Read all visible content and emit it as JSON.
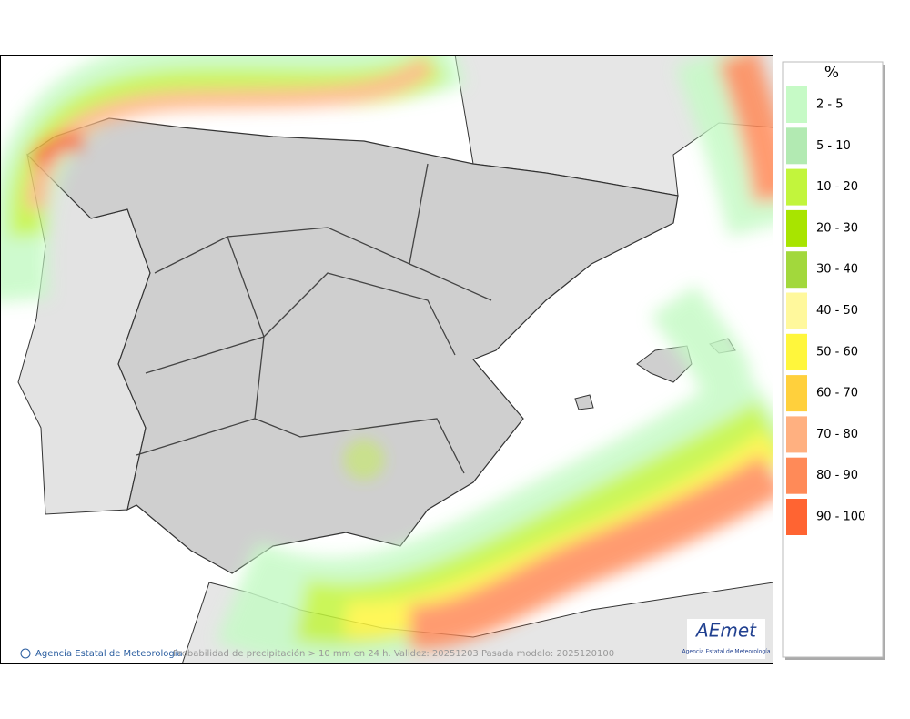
{
  "legend": {
    "title": "%",
    "items": [
      {
        "label": "2 - 5",
        "color": "#c6fac6"
      },
      {
        "label": "5 - 10",
        "color": "#b2eab2"
      },
      {
        "label": "10 - 20",
        "color": "#c2f53c"
      },
      {
        "label": "20 - 30",
        "color": "#a8e400"
      },
      {
        "label": "30 - 40",
        "color": "#a2d83c"
      },
      {
        "label": "40 - 50",
        "color": "#fff89c"
      },
      {
        "label": "50 - 60",
        "color": "#fff63c"
      },
      {
        "label": "60 - 70",
        "color": "#ffd03c"
      },
      {
        "label": "70 - 80",
        "color": "#ffb080"
      },
      {
        "label": "80 - 90",
        "color": "#ff8a58"
      },
      {
        "label": "90 - 100",
        "color": "#ff6432"
      }
    ]
  },
  "footer": {
    "copyright": "Agencia Estatal de Meteorología",
    "caption": "Probabilidad de precipitación > 10 mm en 24 h. Validez: 20251203 Pasada modelo: 2025120100"
  },
  "logo": {
    "name": "AEmet",
    "subtitle": "Agencia Estatal de Meteorología"
  }
}
